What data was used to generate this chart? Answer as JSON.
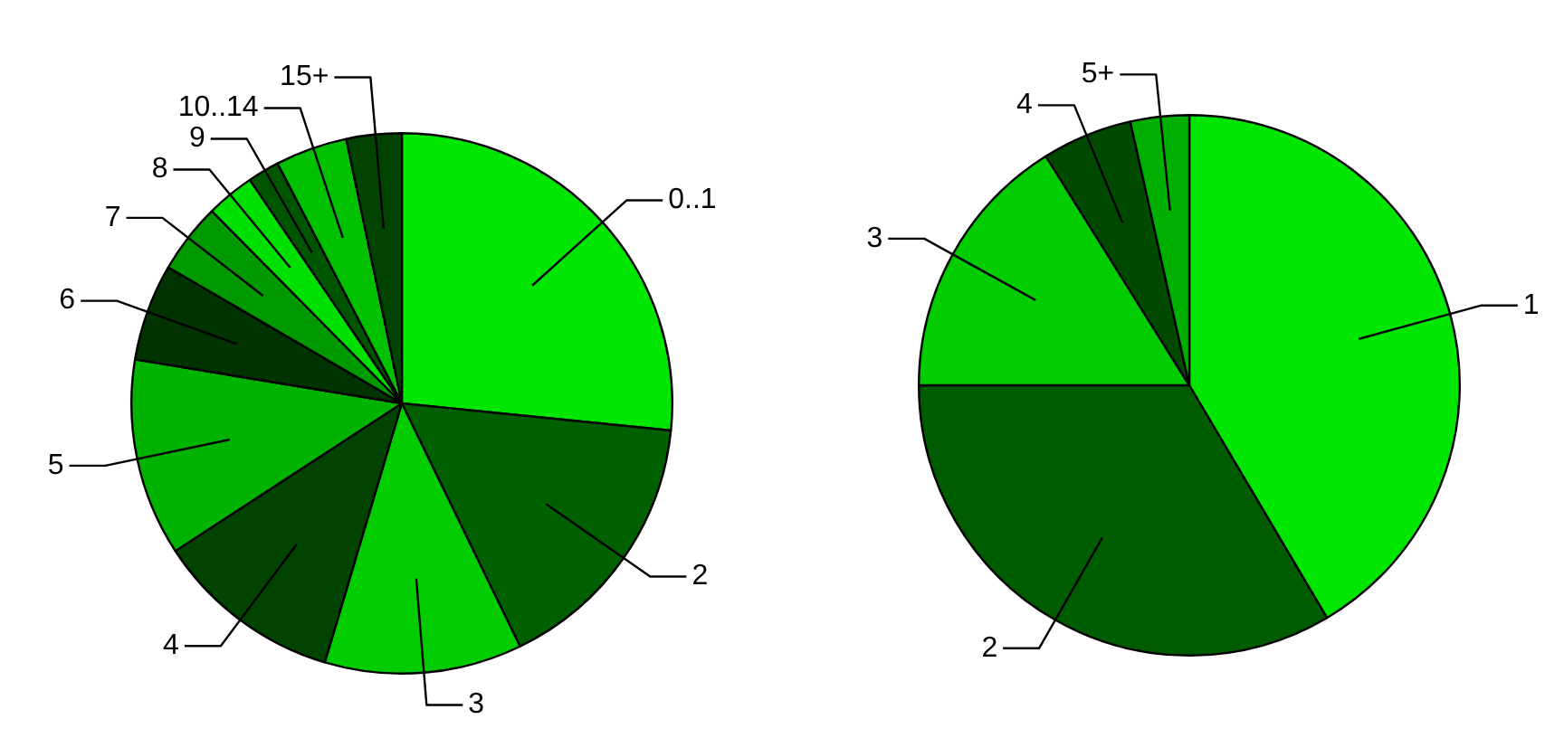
{
  "chart_data": [
    {
      "type": "pie",
      "categories": [
        "0..1",
        "2",
        "3",
        "4",
        "5",
        "6",
        "7",
        "8",
        "9",
        "10..14",
        "15+"
      ],
      "values": [
        26.6,
        16.2,
        11.8,
        11.2,
        11.8,
        5.8,
        4.2,
        2.9,
        1.9,
        4.3,
        3.3
      ],
      "colors": [
        "#00e600",
        "#006000",
        "#00cc00",
        "#004400",
        "#00b300",
        "#003300",
        "#009900",
        "#00e000",
        "#005500",
        "#00c000",
        "#004400"
      ]
    },
    {
      "type": "pie",
      "categories": [
        "1",
        "2",
        "3",
        "4",
        "5+"
      ],
      "values": [
        41.5,
        33.5,
        16.1,
        5.4,
        3.5
      ],
      "colors": [
        "#00e600",
        "#005c00",
        "#00cc00",
        "#004a00",
        "#00b000"
      ]
    }
  ]
}
